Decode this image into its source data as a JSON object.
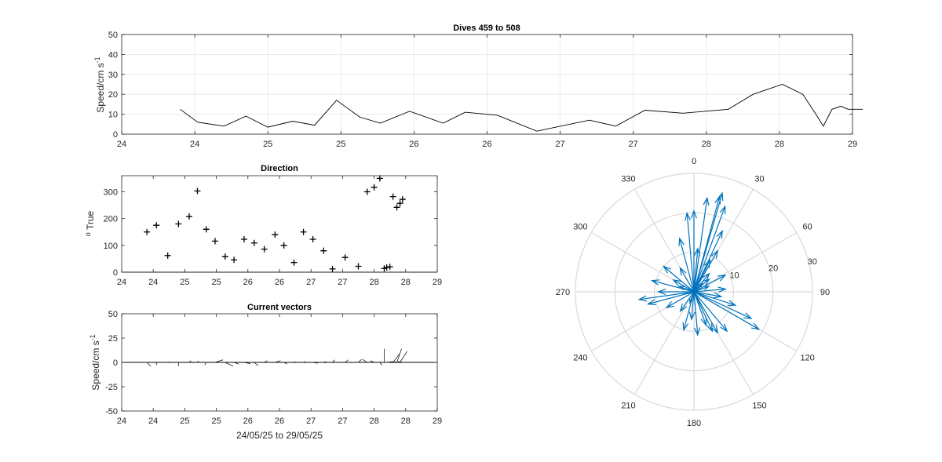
{
  "chart_data": [
    {
      "id": "speed",
      "type": "line",
      "title": "Dives 459 to 508",
      "ylabel": "Speed/cm s",
      "ylabel_exp": "-1",
      "xlim": [
        24,
        29
      ],
      "ylim": [
        0,
        50
      ],
      "xtick_values": [
        24,
        24.5,
        25,
        25.5,
        26,
        26.5,
        27,
        27.5,
        28,
        28.5,
        29
      ],
      "xtick_labels": [
        "24",
        "24",
        "25",
        "25",
        "26",
        "26",
        "27",
        "27",
        "28",
        "28",
        "29"
      ],
      "ytick_values": [
        0,
        10,
        20,
        30,
        40,
        50
      ],
      "ytick_labels": [
        "0",
        "10",
        "20",
        "30",
        "40",
        "50"
      ],
      "grid": true,
      "color": "#000000",
      "x": [
        24.4,
        24.52,
        24.7,
        24.85,
        25.0,
        25.17,
        25.32,
        25.47,
        25.63,
        25.77,
        25.97,
        26.2,
        26.35,
        26.57,
        26.84,
        27.2,
        27.38,
        27.58,
        27.84,
        28.15,
        28.32,
        28.52,
        28.66,
        28.75,
        28.8,
        28.86,
        28.92,
        28.97,
        29.02,
        29.07
      ],
      "y": [
        12.5,
        6,
        4,
        9,
        3.5,
        6.5,
        4.5,
        17,
        8.5,
        5.5,
        11.5,
        5.5,
        11,
        9.5,
        1.5,
        7,
        4,
        12,
        10.5,
        12.5,
        20,
        25,
        20,
        10,
        4,
        12.5,
        14,
        12.5,
        12.5,
        12.5
      ]
    },
    {
      "id": "direction",
      "type": "scatter",
      "title": "Direction",
      "ylabel": "True",
      "ylabel_prefix": "o",
      "xlim": [
        24,
        29
      ],
      "ylim": [
        0,
        360
      ],
      "xtick_values": [
        24,
        24.5,
        25,
        25.5,
        26,
        26.5,
        27,
        27.5,
        28,
        28.5,
        29
      ],
      "xtick_labels": [
        "24",
        "24",
        "25",
        "25",
        "26",
        "26",
        "27",
        "27",
        "28",
        "28",
        "29"
      ],
      "ytick_values": [
        0,
        100,
        200,
        300
      ],
      "ytick_labels": [
        "0",
        "100",
        "200",
        "300"
      ],
      "grid": false,
      "marker": "+",
      "x": [
        24.4,
        24.55,
        24.73,
        24.9,
        25.07,
        25.2,
        25.34,
        25.48,
        25.64,
        25.78,
        25.94,
        26.1,
        26.26,
        26.43,
        26.57,
        26.73,
        26.88,
        27.03,
        27.2,
        27.34,
        27.54,
        27.75,
        27.89,
        28.0,
        28.09,
        28.16,
        28.2,
        28.25,
        28.3,
        28.36,
        28.41,
        28.45
      ],
      "y": [
        150,
        175,
        62,
        180,
        208,
        303,
        160,
        116,
        58,
        46,
        123,
        109,
        86,
        140,
        100,
        36,
        150,
        123,
        80,
        12,
        55,
        22,
        300,
        317,
        350,
        14,
        18,
        20,
        282,
        242,
        257,
        272
      ]
    },
    {
      "id": "vectors",
      "type": "line",
      "subtype": "stick",
      "title": "Current vectors",
      "ylabel": "Speed/cm s",
      "ylabel_exp": "-1",
      "xlabel": "24/05/25 to 29/05/25",
      "xlim": [
        24,
        29
      ],
      "ylim": [
        -50,
        50
      ],
      "xtick_values": [
        24,
        24.5,
        25,
        25.5,
        26,
        26.5,
        27,
        27.5,
        28,
        28.5,
        29
      ],
      "xtick_labels": [
        "24",
        "24",
        "25",
        "25",
        "26",
        "26",
        "27",
        "27",
        "28",
        "28",
        "29"
      ],
      "ytick_values": [
        -50,
        -25,
        0,
        25,
        50
      ],
      "ytick_labels": [
        "-50",
        "-25",
        "0",
        "25",
        "50"
      ],
      "grid": false,
      "sticks": [
        {
          "x": 24.4,
          "u": 0.25,
          "v": -0.45
        },
        {
          "x": 24.55,
          "u": 0.03,
          "v": -0.3
        },
        {
          "x": 24.73,
          "u": 0.12,
          "v": 0.05
        },
        {
          "x": 24.9,
          "u": 0.0,
          "v": -0.45
        },
        {
          "x": 25.07,
          "u": 0.12,
          "v": 0.2
        },
        {
          "x": 25.2,
          "u": 0.08,
          "v": 0.18
        },
        {
          "x": 25.34,
          "u": -0.1,
          "v": -0.3
        },
        {
          "x": 25.48,
          "u": 0.5,
          "v": 0.3
        },
        {
          "x": 25.64,
          "u": 0.5,
          "v": -0.45
        },
        {
          "x": 25.78,
          "u": 0.3,
          "v": -0.2
        },
        {
          "x": 25.94,
          "u": 0.4,
          "v": -0.15
        },
        {
          "x": 26.1,
          "u": 0.25,
          "v": -0.4
        },
        {
          "x": 26.26,
          "u": 0.2,
          "v": 0.2
        },
        {
          "x": 26.43,
          "u": 0.35,
          "v": 0.2
        },
        {
          "x": 26.57,
          "u": 0.2,
          "v": -0.2
        },
        {
          "x": 26.73,
          "u": 0.08,
          "v": 0.1
        },
        {
          "x": 26.88,
          "u": 0.1,
          "v": 0.1
        },
        {
          "x": 27.03,
          "u": 0.3,
          "v": -0.1
        },
        {
          "x": 27.2,
          "u": 0.15,
          "v": 0.1
        },
        {
          "x": 27.34,
          "u": 0.15,
          "v": 0.3
        },
        {
          "x": 27.54,
          "u": 0.2,
          "v": 0.3
        },
        {
          "x": 27.75,
          "u": 0.2,
          "v": 0.35
        },
        {
          "x": 27.89,
          "u": -0.3,
          "v": 0.35
        },
        {
          "x": 28.0,
          "u": -0.25,
          "v": 0.2
        },
        {
          "x": 28.09,
          "u": 0.15,
          "v": -0.35
        },
        {
          "x": 28.16,
          "u": 0.0,
          "v": 1.6
        },
        {
          "x": 28.2,
          "u": 0.4,
          "v": 0.1
        },
        {
          "x": 28.25,
          "u": 0.4,
          "v": 0.05
        },
        {
          "x": 28.3,
          "u": 0.4,
          "v": 1.0
        },
        {
          "x": 28.36,
          "u": 0.3,
          "v": 1.6
        },
        {
          "x": 28.41,
          "u": 0.45,
          "v": 1.3
        },
        {
          "x": 28.45,
          "u": -0.3,
          "v": 0.1
        }
      ]
    },
    {
      "id": "polar",
      "type": "scatter",
      "subtype": "compass",
      "rlim": [
        0,
        30
      ],
      "r_ticks": [
        10,
        20,
        30
      ],
      "r_tick_labels": [
        "10",
        "20",
        "30"
      ],
      "theta_ticks": [
        0,
        30,
        60,
        90,
        120,
        150,
        180,
        210,
        240,
        270,
        300,
        330
      ],
      "theta_labels": [
        "0",
        "30",
        "60",
        "90",
        "120",
        "150",
        "180",
        "210",
        "240",
        "270",
        "300",
        "330"
      ],
      "color": "#0072BD",
      "arrows": [
        {
          "dir": 0,
          "mag": 20.5
        },
        {
          "dir": 8,
          "mag": 24
        },
        {
          "dir": 15,
          "mag": 25
        },
        {
          "dir": 16,
          "mag": 26
        },
        {
          "dir": 20,
          "mag": 23
        },
        {
          "dir": 25,
          "mag": 17
        },
        {
          "dir": 30,
          "mag": 12
        },
        {
          "dir": 27,
          "mag": 9
        },
        {
          "dir": 40,
          "mag": 6
        },
        {
          "dir": 50,
          "mag": 5
        },
        {
          "dir": 62,
          "mag": 9
        },
        {
          "dir": 70,
          "mag": 4
        },
        {
          "dir": 85,
          "mag": 8
        },
        {
          "dir": 100,
          "mag": 7
        },
        {
          "dir": 108,
          "mag": 11
        },
        {
          "dir": 115,
          "mag": 16
        },
        {
          "dir": 120,
          "mag": 19
        },
        {
          "dir": 140,
          "mag": 13
        },
        {
          "dir": 150,
          "mag": 12
        },
        {
          "dir": 155,
          "mag": 11
        },
        {
          "dir": 160,
          "mag": 9
        },
        {
          "dir": 175,
          "mag": 11
        },
        {
          "dir": 185,
          "mag": 7
        },
        {
          "dir": 195,
          "mag": 10
        },
        {
          "dir": 215,
          "mag": 6
        },
        {
          "dir": 240,
          "mag": 8
        },
        {
          "dir": 255,
          "mag": 12
        },
        {
          "dir": 262,
          "mag": 14
        },
        {
          "dir": 270,
          "mag": 9
        },
        {
          "dir": 285,
          "mag": 11
        },
        {
          "dir": 300,
          "mag": 6
        },
        {
          "dir": 310,
          "mag": 10
        },
        {
          "dir": 330,
          "mag": 7
        },
        {
          "dir": 345,
          "mag": 14
        },
        {
          "dir": 355,
          "mag": 20
        },
        {
          "dir": 5,
          "mag": 11
        },
        {
          "dir": 45,
          "mag": 3
        },
        {
          "dir": 200,
          "mag": 3
        },
        {
          "dir": 290,
          "mag": 4
        }
      ]
    }
  ]
}
